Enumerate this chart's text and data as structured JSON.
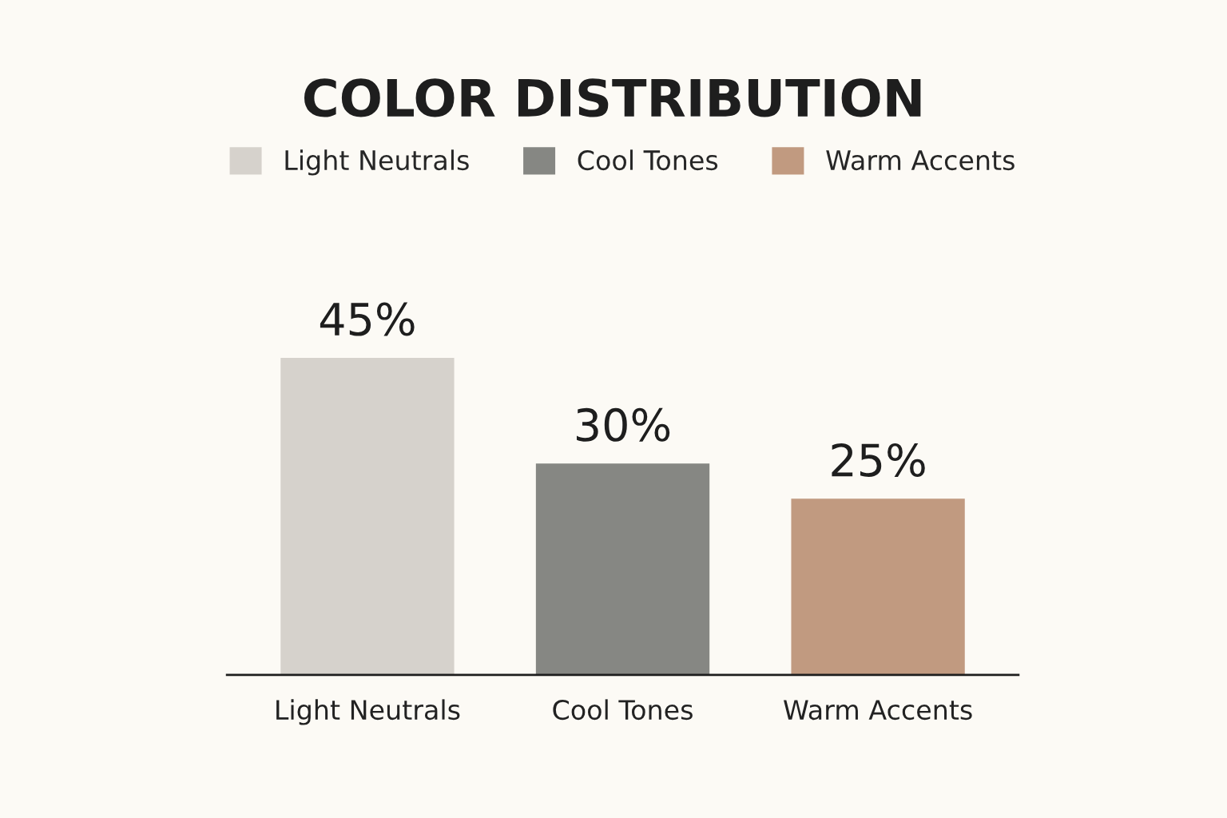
{
  "chart_data": {
    "type": "bar",
    "title": "COLOR DISTRIBUTION",
    "categories": [
      "Light Neutrals",
      "Cool Tones",
      "Warm Accents"
    ],
    "series": [
      {
        "name": "Light Neutrals",
        "color": "#d6d2cc",
        "values": [
          45,
          null,
          null
        ],
        "value_labels": [
          "45%",
          null,
          null
        ]
      },
      {
        "name": "Cool Tones",
        "color": "#868783",
        "values": [
          null,
          30,
          null
        ],
        "value_labels": [
          null,
          "30%",
          null
        ]
      },
      {
        "name": "Warm Accents",
        "color": "#c19a80",
        "values": [
          null,
          null,
          25
        ],
        "value_labels": [
          null,
          null,
          "25%"
        ]
      }
    ],
    "legend": "top",
    "grid": false
  }
}
